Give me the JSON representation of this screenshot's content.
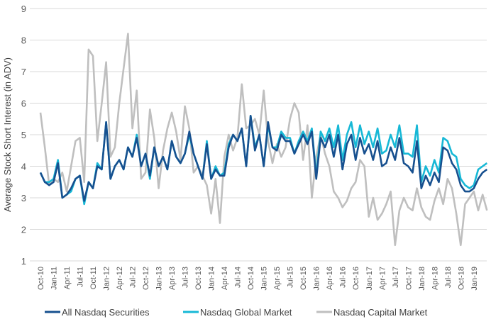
{
  "chart_data": {
    "type": "line",
    "title": "",
    "xlabel": "",
    "ylabel": "Average Stock Short Interest (in ADV)",
    "ylim": [
      1,
      9
    ],
    "yticks": [
      "1",
      "2",
      "3",
      "4",
      "5",
      "6",
      "7",
      "8",
      "9"
    ],
    "grid": true,
    "legend_position": "bottom",
    "x_tick_labels": [
      "Oct-10",
      "Jan-11",
      "Apr-11",
      "Jul-11",
      "Oct-11",
      "Jan-12",
      "Apr-12",
      "Jul-12",
      "Oct-12",
      "Jan-13",
      "Apr-13",
      "Jul-13",
      "Oct-13",
      "Jan-14",
      "Apr-14",
      "Jul-14",
      "Oct-14",
      "Jan-15",
      "Apr-15",
      "Jul-15",
      "Oct-15",
      "Jan-16",
      "Apr-16",
      "Jul-16",
      "Oct-16",
      "Jan-17",
      "Apr-17",
      "Jul-17",
      "Oct-17",
      "Jan-18",
      "Apr-18",
      "Jul-18",
      "Oct-18",
      "Jan-19"
    ],
    "x": [
      "Oct-10",
      "Nov-10",
      "Dec-10",
      "Jan-11",
      "Feb-11",
      "Mar-11",
      "Apr-11",
      "May-11",
      "Jun-11",
      "Jul-11",
      "Aug-11",
      "Sep-11",
      "Oct-11",
      "Nov-11",
      "Dec-11",
      "Jan-12",
      "Feb-12",
      "Mar-12",
      "Apr-12",
      "May-12",
      "Jun-12",
      "Jul-12",
      "Aug-12",
      "Sep-12",
      "Oct-12",
      "Nov-12",
      "Dec-12",
      "Jan-13",
      "Feb-13",
      "Mar-13",
      "Apr-13",
      "May-13",
      "Jun-13",
      "Jul-13",
      "Aug-13",
      "Sep-13",
      "Oct-13",
      "Nov-13",
      "Dec-13",
      "Jan-14",
      "Feb-14",
      "Mar-14",
      "Apr-14",
      "May-14",
      "Jun-14",
      "Jul-14",
      "Aug-14",
      "Sep-14",
      "Oct-14",
      "Nov-14",
      "Dec-14",
      "Jan-15",
      "Feb-15",
      "Mar-15",
      "Apr-15",
      "May-15",
      "Jun-15",
      "Jul-15",
      "Aug-15",
      "Sep-15",
      "Oct-15",
      "Nov-15",
      "Dec-15",
      "Jan-16",
      "Feb-16",
      "Mar-16",
      "Apr-16",
      "May-16",
      "Jun-16",
      "Jul-16",
      "Aug-16",
      "Sep-16",
      "Oct-16",
      "Nov-16",
      "Dec-16",
      "Jan-17",
      "Feb-17",
      "Mar-17",
      "Apr-17",
      "May-17",
      "Jun-17",
      "Jul-17",
      "Aug-17",
      "Sep-17",
      "Oct-17",
      "Nov-17",
      "Dec-17",
      "Jan-18",
      "Feb-18",
      "Mar-18",
      "Apr-18",
      "May-18",
      "Jun-18",
      "Jul-18",
      "Aug-18",
      "Sep-18",
      "Oct-18",
      "Nov-18",
      "Dec-18",
      "Jan-19",
      "Feb-19",
      "Mar-19",
      "Apr-19"
    ],
    "series": [
      {
        "name": "Nasdaq Capital Market",
        "color": "#BFBFBF",
        "values": [
          5.7,
          4.6,
          3.4,
          3.6,
          3.5,
          3.8,
          3.2,
          4.0,
          4.8,
          4.9,
          3.5,
          7.7,
          7.5,
          4.8,
          6.0,
          7.3,
          4.3,
          4.6,
          6.0,
          7.1,
          8.2,
          5.2,
          6.4,
          3.6,
          3.8,
          5.8,
          4.9,
          3.3,
          4.5,
          5.2,
          5.7,
          5.1,
          4.2,
          5.9,
          5.2,
          3.8,
          4.0,
          3.7,
          3.4,
          2.5,
          3.6,
          2.2,
          4.3,
          5.0,
          4.5,
          4.9,
          6.6,
          5.2,
          5.3,
          5.5,
          5.0,
          6.4,
          4.8,
          4.1,
          4.7,
          4.3,
          4.6,
          5.5,
          6.0,
          5.7,
          4.2,
          5.3,
          3.0,
          4.3,
          5.0,
          4.4,
          4.0,
          3.2,
          3.0,
          2.7,
          2.9,
          3.3,
          3.5,
          4.2,
          4.0,
          2.4,
          3.0,
          2.3,
          2.5,
          2.8,
          3.2,
          1.5,
          2.6,
          3.0,
          2.7,
          2.6,
          3.3,
          2.7,
          2.4,
          2.3,
          2.9,
          3.3,
          2.8,
          3.6,
          3.3,
          2.5,
          1.5,
          2.8,
          3.0,
          3.2,
          2.6,
          3.1,
          2.6
        ]
      },
      {
        "name": "Nasdaq Global Market",
        "color": "#17B8D6",
        "values": [
          3.8,
          3.5,
          3.5,
          3.6,
          4.2,
          3.0,
          3.1,
          3.2,
          3.6,
          3.7,
          2.8,
          3.5,
          3.3,
          4.1,
          3.9,
          5.4,
          3.6,
          4.0,
          4.2,
          3.9,
          4.6,
          4.3,
          5.0,
          4.0,
          4.4,
          3.6,
          4.6,
          4.0,
          4.3,
          3.9,
          4.8,
          4.3,
          4.1,
          4.4,
          5.0,
          4.4,
          4.0,
          3.6,
          4.8,
          3.6,
          4.0,
          3.7,
          3.8,
          4.7,
          5.0,
          4.8,
          5.2,
          4.0,
          5.6,
          4.6,
          5.0,
          4.0,
          5.3,
          4.6,
          4.6,
          5.1,
          4.9,
          4.9,
          4.4,
          4.8,
          5.1,
          4.8,
          5.2,
          3.7,
          5.1,
          4.8,
          5.2,
          4.6,
          5.3,
          4.2,
          5.0,
          5.4,
          4.6,
          5.3,
          4.7,
          5.1,
          4.6,
          5.2,
          4.4,
          4.5,
          5.0,
          4.6,
          5.3,
          4.4,
          4.4,
          4.3,
          5.3,
          3.5,
          4.0,
          3.7,
          4.2,
          3.8,
          4.9,
          4.8,
          4.4,
          4.3,
          3.6,
          3.4,
          3.3,
          3.4,
          3.9,
          4.0,
          4.1
        ]
      },
      {
        "name": "All Nasdaq Securities",
        "color": "#17508F",
        "values": [
          3.8,
          3.5,
          3.4,
          3.5,
          4.1,
          3.0,
          3.1,
          3.3,
          3.6,
          3.7,
          2.9,
          3.5,
          3.3,
          4.0,
          3.9,
          5.4,
          3.6,
          4.0,
          4.2,
          3.9,
          4.6,
          4.3,
          4.9,
          4.0,
          4.4,
          3.7,
          4.6,
          4.0,
          4.3,
          3.9,
          4.8,
          4.3,
          4.1,
          4.4,
          5.1,
          4.4,
          4.0,
          3.6,
          4.7,
          3.6,
          3.9,
          3.7,
          3.7,
          4.6,
          5.0,
          4.8,
          5.2,
          4.0,
          5.6,
          4.5,
          5.0,
          4.0,
          5.4,
          4.6,
          4.5,
          5.0,
          4.8,
          4.8,
          4.4,
          4.7,
          5.0,
          4.7,
          5.1,
          3.6,
          4.9,
          4.6,
          5.0,
          4.3,
          5.0,
          3.9,
          4.7,
          5.0,
          4.2,
          4.9,
          4.4,
          4.7,
          4.2,
          4.8,
          4.0,
          4.1,
          4.6,
          4.2,
          4.9,
          4.1,
          4.0,
          3.8,
          4.8,
          3.3,
          3.7,
          3.4,
          3.8,
          3.5,
          4.6,
          4.5,
          4.1,
          3.9,
          3.4,
          3.2,
          3.2,
          3.3,
          3.6,
          3.8,
          3.9
        ]
      }
    ],
    "legend": [
      "All Nasdaq Securities",
      "Nasdaq Global Market",
      "Nasdaq Capital Market"
    ]
  }
}
